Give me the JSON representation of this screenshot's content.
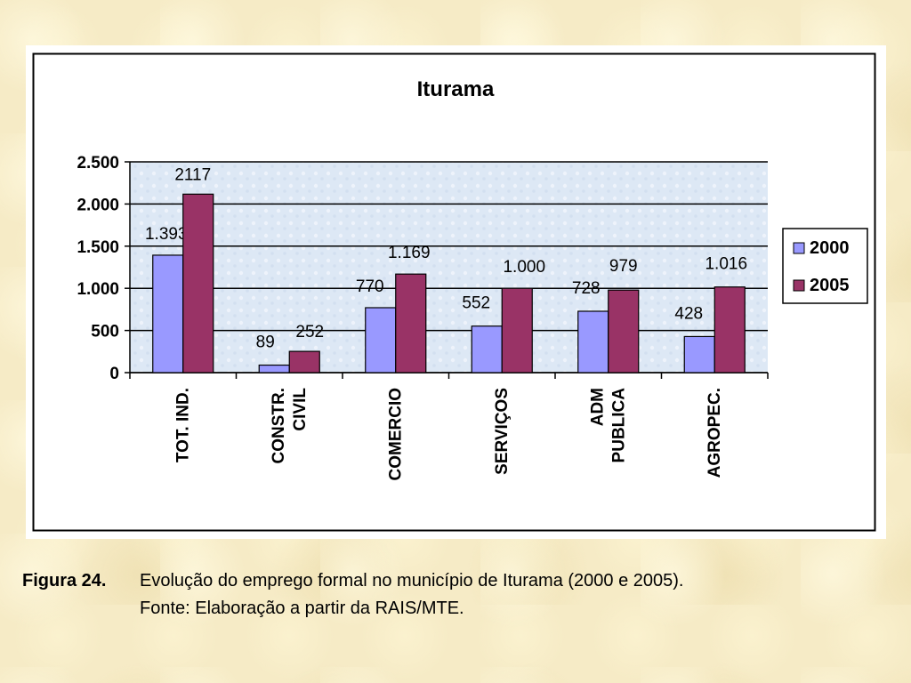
{
  "chart_data": {
    "type": "bar",
    "title": "Iturama",
    "categories": [
      [
        "TOT. IND."
      ],
      [
        "CONSTR.",
        "CIVIL"
      ],
      [
        "COMERCIO"
      ],
      [
        "SERVIÇOS"
      ],
      [
        "ADM",
        "PUBLICA"
      ],
      [
        "AGROPEC."
      ]
    ],
    "series": [
      {
        "name": "2000",
        "color": "#9999ff",
        "values": [
          1393,
          89,
          770,
          552,
          728,
          428
        ],
        "labels": [
          "1.393",
          "89",
          "770",
          "552",
          "728",
          "428"
        ]
      },
      {
        "name": "2005",
        "color": "#993366",
        "values": [
          2117,
          252,
          1169,
          1000,
          979,
          1016
        ],
        "labels": [
          "2117",
          "252",
          "1.169",
          "1.000",
          "979",
          "1.016"
        ]
      }
    ],
    "yticks": [
      0,
      500,
      1000,
      1500,
      2000,
      2500
    ],
    "ytick_labels": [
      "0",
      "500",
      "1.000",
      "1.500",
      "2.000",
      "2.500"
    ],
    "ylim": [
      0,
      2500
    ],
    "grid": true,
    "legend_position": "right",
    "plot_background": "#dde8f5"
  },
  "caption": {
    "label": "Figura 24.",
    "text": "Evolução do emprego formal no município de Iturama (2000 e 2005).",
    "source": "Fonte: Elaboração  a partir da RAIS/MTE."
  }
}
